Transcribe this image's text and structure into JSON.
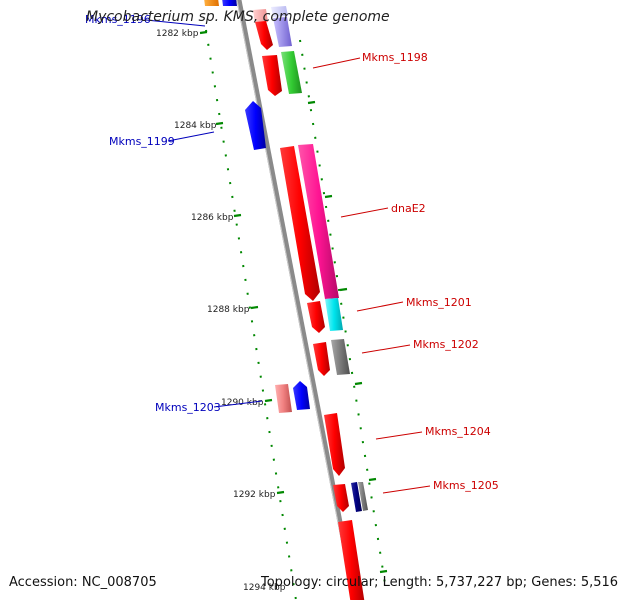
{
  "map": {
    "first_gene_label": "Mkms_1196",
    "title": "Mycobacterium sp. KMS, complete genome",
    "accession": "Accession: NC_008705",
    "topology": "Topology: circular; Length: 5,737,227 bp; Genes: 5,516"
  },
  "ticks": [
    {
      "label": "1282 kbp"
    },
    {
      "label": "1284 kbp"
    },
    {
      "label": "1286 kbp"
    },
    {
      "label": "1288 kbp"
    },
    {
      "label": "1290 kbp"
    },
    {
      "label": "1292 kbp"
    },
    {
      "label": "1294 kbp"
    }
  ],
  "genes": [
    {
      "label": "Mkms_1198",
      "strand": "forward",
      "color": "#cc0000"
    },
    {
      "label": "Mkms_1199",
      "strand": "reverse",
      "color": "#0000cc"
    },
    {
      "label": "dnaE2",
      "strand": "forward",
      "color": "#cc0000"
    },
    {
      "label": "Mkms_1201",
      "strand": "forward",
      "color": "#cc0000"
    },
    {
      "label": "Mkms_1202",
      "strand": "forward",
      "color": "#cc0000"
    },
    {
      "label": "Mkms_1203",
      "strand": "reverse",
      "color": "#0000cc"
    },
    {
      "label": "Mkms_1204",
      "strand": "forward",
      "color": "#cc0000"
    },
    {
      "label": "Mkms_1205",
      "strand": "forward",
      "color": "#cc0000"
    }
  ],
  "colors": {
    "backbone": "#8a8a8a",
    "tick": "#008800",
    "forward_label": "#cc0000",
    "reverse_label": "#0000bb",
    "red": "#ff0000",
    "pink": "#ff1493",
    "green": "#33cc33",
    "blue": "#0000ff",
    "lavender": "#8070e0",
    "cyan": "#00e5ee",
    "gray": "#808080",
    "salmon": "#f08080",
    "navy": "#000080",
    "orange": "#ff8c00"
  }
}
